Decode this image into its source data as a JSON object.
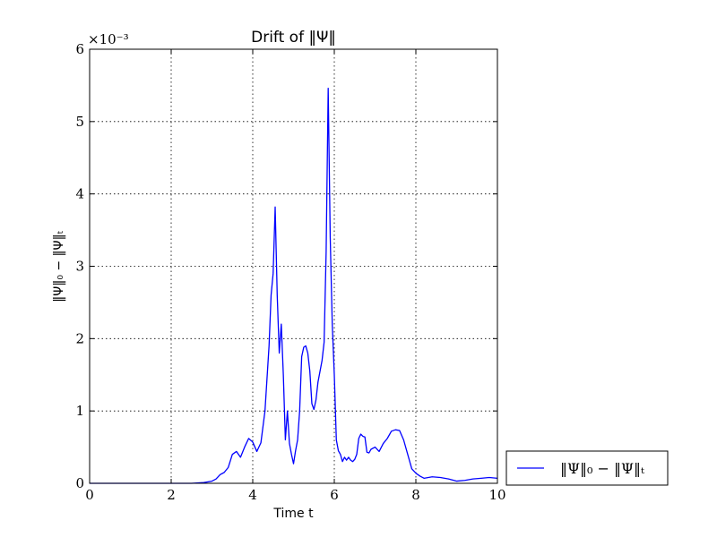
{
  "chart_data": {
    "type": "line",
    "title": "Drift of ‖Ψ‖",
    "xlabel": "Time t",
    "ylabel": "‖Ψ‖₀ − ‖Ψ‖ₜ",
    "y_multiplier": "×10⁻³",
    "xlim": [
      0,
      10
    ],
    "ylim": [
      0,
      6
    ],
    "x_ticks": [
      "0",
      "2",
      "4",
      "6",
      "8",
      "10"
    ],
    "y_ticks": [
      "0",
      "1",
      "2",
      "3",
      "4",
      "5",
      "6"
    ],
    "grid": true,
    "legend_position": "outside-right-bottom",
    "series": [
      {
        "name": "‖Ψ‖₀ − ‖Ψ‖ₜ",
        "color": "#0000ff",
        "x": [
          0,
          1,
          2,
          2.5,
          2.8,
          3.0,
          3.1,
          3.2,
          3.3,
          3.4,
          3.5,
          3.6,
          3.7,
          3.8,
          3.9,
          4.0,
          4.1,
          4.2,
          4.3,
          4.4,
          4.45,
          4.5,
          4.55,
          4.6,
          4.65,
          4.7,
          4.75,
          4.8,
          4.85,
          4.9,
          4.95,
          5.0,
          5.05,
          5.1,
          5.15,
          5.2,
          5.25,
          5.3,
          5.35,
          5.4,
          5.45,
          5.5,
          5.55,
          5.6,
          5.65,
          5.7,
          5.75,
          5.8,
          5.85,
          5.9,
          5.95,
          6.0,
          6.05,
          6.1,
          6.15,
          6.2,
          6.25,
          6.3,
          6.35,
          6.4,
          6.45,
          6.5,
          6.55,
          6.6,
          6.65,
          6.7,
          6.75,
          6.8,
          6.85,
          6.9,
          7.0,
          7.1,
          7.2,
          7.3,
          7.4,
          7.5,
          7.6,
          7.7,
          7.8,
          7.9,
          8.0,
          8.1,
          8.2,
          8.4,
          8.6,
          8.8,
          9.0,
          9.2,
          9.4,
          9.6,
          9.8,
          10.0
        ],
        "y": [
          0.0,
          0.0,
          0.0,
          0.0,
          0.01,
          0.03,
          0.06,
          0.12,
          0.15,
          0.22,
          0.4,
          0.44,
          0.36,
          0.5,
          0.62,
          0.57,
          0.44,
          0.56,
          1.0,
          1.9,
          2.6,
          2.9,
          3.82,
          2.6,
          1.8,
          2.2,
          1.5,
          0.6,
          1.0,
          0.55,
          0.4,
          0.27,
          0.45,
          0.6,
          1.0,
          1.75,
          1.88,
          1.9,
          1.8,
          1.55,
          1.1,
          1.02,
          1.15,
          1.4,
          1.55,
          1.7,
          1.95,
          3.2,
          5.46,
          3.4,
          2.2,
          1.5,
          0.6,
          0.45,
          0.4,
          0.3,
          0.36,
          0.32,
          0.36,
          0.32,
          0.3,
          0.33,
          0.4,
          0.62,
          0.68,
          0.65,
          0.64,
          0.43,
          0.42,
          0.47,
          0.5,
          0.44,
          0.55,
          0.62,
          0.72,
          0.74,
          0.73,
          0.6,
          0.4,
          0.2,
          0.14,
          0.1,
          0.07,
          0.09,
          0.08,
          0.06,
          0.03,
          0.04,
          0.06,
          0.07,
          0.08,
          0.07
        ]
      }
    ]
  }
}
